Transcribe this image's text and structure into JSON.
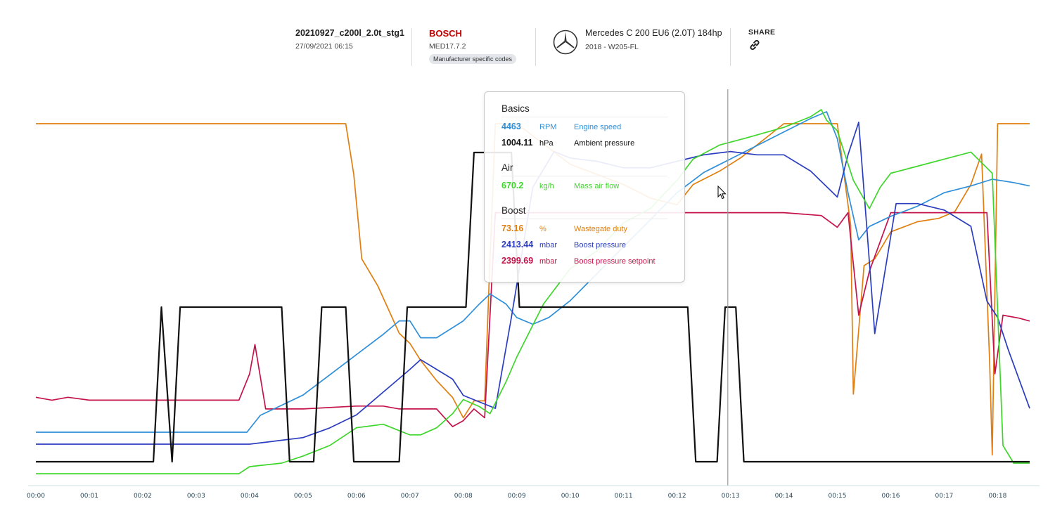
{
  "header": {
    "file_name": "20210927_c200l_2.0t_stg1",
    "date": "27/09/2021 06:15",
    "brand": "BOSCH",
    "ecu": "MED17.7.2",
    "codes_badge": "Manufacturer specific codes",
    "logo_icon": "mercedes-star-icon",
    "vehicle": "Mercedes C 200 EU6 (2.0T) 184hp",
    "vehicle_sub": "2018 - W205-FL",
    "share_label": "SHARE",
    "share_icon": "link-icon"
  },
  "tooltip": {
    "groups": [
      {
        "title": "Basics",
        "rows": [
          {
            "value": "4463",
            "unit": "RPM",
            "name": "Engine speed",
            "color": "#2f8fd8"
          },
          {
            "value": "1004.11",
            "unit": "hPa",
            "name": "Ambient pressure",
            "color": "#111111"
          }
        ]
      },
      {
        "title": "Air",
        "rows": [
          {
            "value": "670.2",
            "unit": "kg/h",
            "name": "Mass air flow",
            "color": "#3fd62c"
          }
        ]
      },
      {
        "title": "Boost",
        "rows": [
          {
            "value": "73.16",
            "unit": "%",
            "name": "Wastegate duty",
            "color": "#e07f10"
          },
          {
            "value": "2413.44",
            "unit": "mbar",
            "name": "Boost pressure",
            "color": "#2b3dbf"
          },
          {
            "value": "2399.69",
            "unit": "mbar",
            "name": "Boost pressure setpoint",
            "color": "#c4134a"
          }
        ]
      }
    ]
  },
  "chart_data": {
    "type": "line",
    "x_ticks": [
      "00:00",
      "00:01",
      "00:02",
      "00:03",
      "00:04",
      "00:05",
      "00:06",
      "00:07",
      "00:08",
      "00:09",
      "00:10",
      "00:11",
      "00:12",
      "00:13",
      "00:14",
      "00:15",
      "00:16",
      "00:17",
      "00:18"
    ],
    "xlim": [
      0,
      18.6
    ],
    "cursor_x": 12.95,
    "grid": false,
    "legend": "tooltip",
    "series": [
      {
        "key": "wastegate",
        "color": "#e07f10",
        "ylim": [
          0,
          100
        ],
        "x": [
          0,
          5.8,
          5.95,
          6.1,
          6.4,
          6.6,
          6.8,
          7.0,
          7.2,
          7.5,
          7.8,
          8.0,
          8.2,
          8.4,
          8.5,
          8.6,
          9.0,
          10.0,
          11.0,
          11.5,
          12.0,
          12.3,
          12.8,
          13.2,
          14.0,
          15.0,
          15.25,
          15.3,
          15.5,
          15.7,
          16.0,
          16.5,
          16.9,
          17.2,
          17.5,
          17.7,
          17.85,
          17.9,
          18.0,
          18.6
        ],
        "y": [
          100,
          100,
          85,
          60,
          52,
          45,
          38,
          35,
          30,
          24,
          19,
          13,
          18,
          18,
          60,
          100,
          100,
          88,
          82,
          78,
          76,
          82,
          86,
          90,
          100,
          100,
          70,
          20,
          58,
          60,
          68,
          71,
          72,
          74,
          82,
          91,
          30,
          2,
          100,
          100
        ]
      },
      {
        "key": "boost_setpoint",
        "color": "#c4134a",
        "ylim": [
          0,
          100
        ],
        "x": [
          0,
          0.3,
          0.6,
          1.0,
          1.3,
          2.0,
          3.0,
          3.5,
          3.8,
          4.0,
          4.1,
          4.3,
          4.5,
          5.0,
          6.0,
          6.5,
          6.8,
          7.0,
          7.5,
          7.8,
          8.0,
          8.2,
          8.4,
          8.6,
          8.8,
          9.0,
          9.5,
          10.0,
          11.0,
          11.5,
          12.0,
          12.5,
          13.0,
          13.5,
          14.0,
          14.7,
          15.0,
          15.2,
          15.4,
          15.6,
          15.8,
          16.0,
          16.5,
          17.0,
          17.5,
          17.8,
          17.95,
          18.1,
          18.4,
          18.6
        ],
        "y": [
          22,
          21,
          22,
          21,
          21,
          21,
          21,
          21,
          21,
          30,
          40,
          18,
          18,
          18,
          19,
          19,
          18,
          18,
          18,
          12,
          14,
          18,
          15,
          85,
          85,
          85,
          85,
          85,
          85,
          85,
          85,
          85,
          85,
          85,
          85,
          84,
          80,
          85,
          50,
          65,
          75,
          85,
          85,
          85,
          85,
          85,
          30,
          50,
          49,
          48
        ]
      },
      {
        "key": "rpm",
        "color": "#2f8fd8",
        "ylim": [
          0,
          100
        ],
        "x": [
          0,
          2.0,
          3.0,
          3.95,
          4.2,
          4.6,
          5.0,
          5.5,
          6.0,
          6.5,
          6.8,
          7.0,
          7.2,
          7.5,
          8.0,
          8.3,
          8.5,
          8.8,
          9.0,
          9.3,
          9.6,
          10.0,
          10.5,
          11.0,
          11.5,
          12.0,
          12.5,
          13.0,
          13.5,
          14.0,
          14.5,
          14.8,
          15.0,
          15.2,
          15.4,
          15.6,
          16.0,
          16.5,
          17.0,
          17.5,
          17.7,
          17.9,
          18.3,
          18.6
        ],
        "y": [
          5,
          5,
          5,
          5,
          10,
          13,
          16,
          22,
          28,
          34,
          38,
          38,
          33,
          33,
          38,
          43,
          46,
          43,
          39,
          37,
          39,
          44,
          52,
          60,
          68,
          76,
          82,
          86,
          90,
          94,
          98,
          100,
          92,
          76,
          62,
          66,
          69,
          72,
          76,
          78,
          79,
          80,
          79,
          78
        ]
      },
      {
        "key": "boost_pressure",
        "color": "#2b3dbf",
        "ylim": [
          0,
          100
        ],
        "x": [
          0,
          3.0,
          4.0,
          4.5,
          5.0,
          5.5,
          6.0,
          6.5,
          7.0,
          7.2,
          7.5,
          7.8,
          8.0,
          8.3,
          8.6,
          8.9,
          9.3,
          9.7,
          10.0,
          10.5,
          11.0,
          11.5,
          12.0,
          12.5,
          13.0,
          13.5,
          14.0,
          14.5,
          15.0,
          15.2,
          15.4,
          15.55,
          15.7,
          15.9,
          16.1,
          16.5,
          17.0,
          17.5,
          17.8,
          18.0,
          18.2,
          18.6
        ],
        "y": [
          1,
          1,
          1,
          2,
          3,
          6,
          10,
          17,
          24,
          27,
          24,
          21,
          16,
          14,
          12,
          40,
          80,
          91,
          89,
          88,
          86,
          86,
          88,
          90,
          91,
          90,
          90,
          85,
          77,
          90,
          100,
          68,
          35,
          55,
          75,
          75,
          73,
          68,
          45,
          40,
          30,
          12
        ]
      },
      {
        "key": "maf",
        "color": "#3fd62c",
        "ylim": [
          0,
          100
        ],
        "x": [
          0,
          3.0,
          3.8,
          4.0,
          4.6,
          5.0,
          5.5,
          6.0,
          6.5,
          7.0,
          7.2,
          7.5,
          7.8,
          8.0,
          8.3,
          8.5,
          8.8,
          9.0,
          9.5,
          10.0,
          10.5,
          11.0,
          11.5,
          12.0,
          12.3,
          12.8,
          13.3,
          14.0,
          14.5,
          14.7,
          14.8,
          15.0,
          15.3,
          15.6,
          15.8,
          16.0,
          16.5,
          17.0,
          17.5,
          17.9,
          18.1,
          18.3,
          18.6
        ],
        "y": [
          -3,
          -3,
          -3,
          -1,
          0,
          2,
          5,
          10,
          11,
          8,
          8,
          10,
          14,
          18,
          16,
          14,
          23,
          30,
          45,
          55,
          60,
          68,
          72,
          80,
          86,
          90,
          92,
          95,
          98,
          100,
          97,
          94,
          80,
          72,
          78,
          82,
          84,
          86,
          88,
          82,
          5,
          0,
          0
        ]
      },
      {
        "key": "ambient",
        "color": "#111111",
        "ylim": [
          0,
          100
        ],
        "x": [
          0,
          2.2,
          2.35,
          2.55,
          2.7,
          4.6,
          4.75,
          5.2,
          5.35,
          5.8,
          5.95,
          6.8,
          6.95,
          8.05,
          8.2,
          8.9,
          9.05,
          12.2,
          12.35,
          12.75,
          12.9,
          13.1,
          13.25,
          18.6
        ],
        "y": [
          0,
          0,
          100,
          0,
          100,
          100,
          0,
          0,
          100,
          100,
          0,
          0,
          100,
          100,
          200,
          200,
          100,
          100,
          0,
          0,
          100,
          100,
          0,
          0
        ]
      }
    ]
  }
}
